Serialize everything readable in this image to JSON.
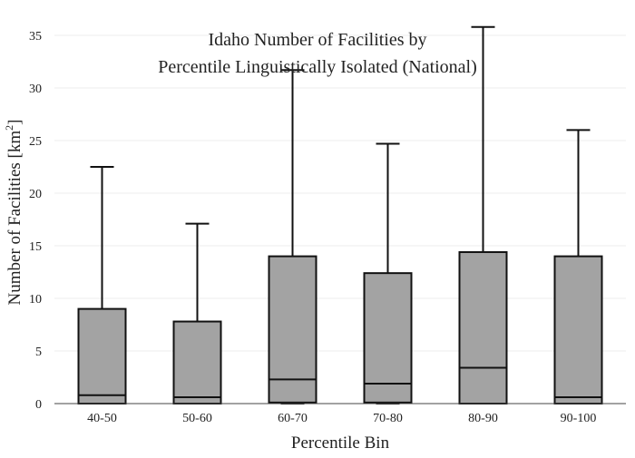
{
  "chart_data": {
    "type": "box",
    "title_lines": [
      "Idaho Number of Facilities by",
      "Percentile Linguistically Isolated (National)"
    ],
    "xlabel": "Percentile Bin",
    "ylabel_main": "Number of Facilities  [km",
    "ylabel_sup": "2",
    "ylabel_close": "]",
    "ylim": [
      0,
      37
    ],
    "yticks": [
      0,
      5,
      10,
      15,
      20,
      25,
      30,
      35
    ],
    "grid": true,
    "box_fill": "#a3a3a3",
    "box_stroke": "#111111",
    "categories": [
      "40-50",
      "50-60",
      "60-70",
      "70-80",
      "80-90",
      "90-100"
    ],
    "boxes": [
      {
        "min": 0,
        "q1": 0,
        "median": 0.8,
        "q3": 9.0,
        "max": 22.5
      },
      {
        "min": 0,
        "q1": 0,
        "median": 0.6,
        "q3": 7.8,
        "max": 17.1
      },
      {
        "min": 0,
        "q1": 0.1,
        "median": 2.3,
        "q3": 14.0,
        "max": 31.7
      },
      {
        "min": 0,
        "q1": 0.1,
        "median": 1.9,
        "q3": 12.4,
        "max": 24.7
      },
      {
        "min": 0,
        "q1": 0,
        "median": 3.4,
        "q3": 14.4,
        "max": 35.8
      },
      {
        "min": 0,
        "q1": 0,
        "median": 0.6,
        "q3": 14.0,
        "max": 26.0
      }
    ]
  }
}
